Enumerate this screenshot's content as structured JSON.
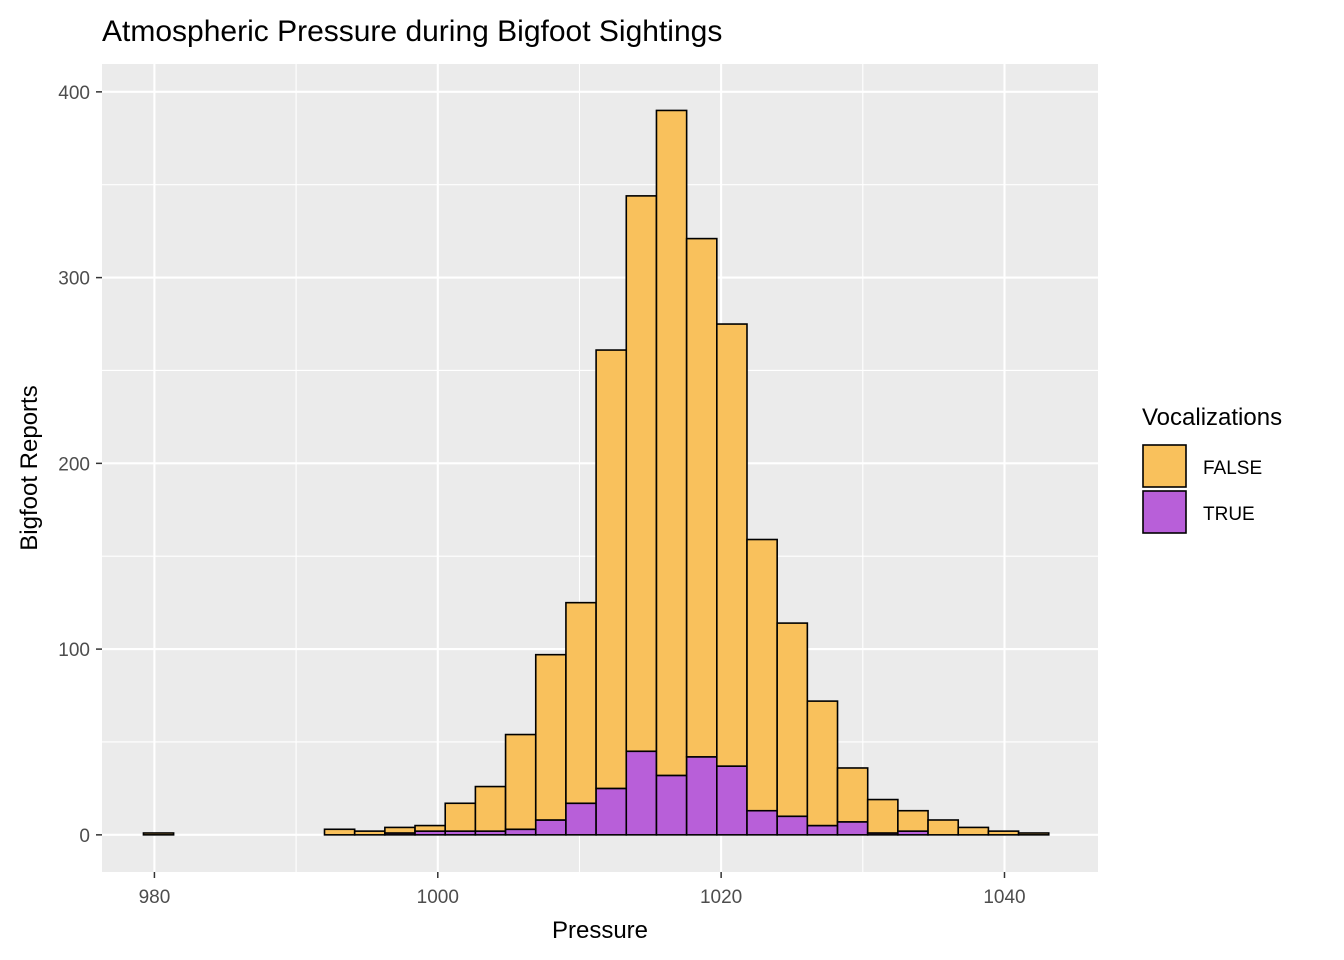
{
  "chart_data": {
    "type": "bar",
    "subtype": "stacked-histogram",
    "title": "Atmospheric Pressure during Bigfoot Sightings",
    "xlabel": "Pressure",
    "ylabel": "Bigfoot Reports",
    "xlim": [
      976.3,
      1046.6
    ],
    "ylim": [
      -20,
      415
    ],
    "x_ticks": [
      980,
      1000,
      1020,
      1040
    ],
    "y_ticks": [
      0,
      100,
      200,
      300,
      400
    ],
    "grid": true,
    "bin_width": 2.13,
    "bin_centers": [
      980.29,
      982.42,
      984.55,
      986.68,
      988.81,
      990.94,
      993.07,
      995.2,
      997.33,
      999.46,
      1001.59,
      1003.72,
      1005.85,
      1007.98,
      1010.11,
      1012.24,
      1014.37,
      1016.5,
      1018.63,
      1020.76,
      1022.89,
      1025.02,
      1027.15,
      1029.28,
      1031.41,
      1033.54,
      1035.67,
      1037.8,
      1039.93,
      1042.06
    ],
    "legend": {
      "title": "Vocalizations",
      "position": "right"
    },
    "series": [
      {
        "name": "FALSE",
        "color": "#f9c15c",
        "values": [
          1,
          0,
          0,
          0,
          0,
          0,
          3,
          2,
          3,
          3,
          15,
          24,
          51,
          89,
          108,
          236,
          299,
          358,
          279,
          238,
          146,
          104,
          67,
          29,
          18,
          11,
          8,
          4,
          2,
          1
        ]
      },
      {
        "name": "TRUE",
        "color": "#b85fd9",
        "values": [
          0,
          0,
          0,
          0,
          0,
          0,
          0,
          0,
          1,
          2,
          2,
          2,
          3,
          8,
          17,
          25,
          45,
          32,
          42,
          37,
          13,
          10,
          5,
          7,
          1,
          2,
          0,
          0,
          0,
          0
        ]
      }
    ]
  }
}
